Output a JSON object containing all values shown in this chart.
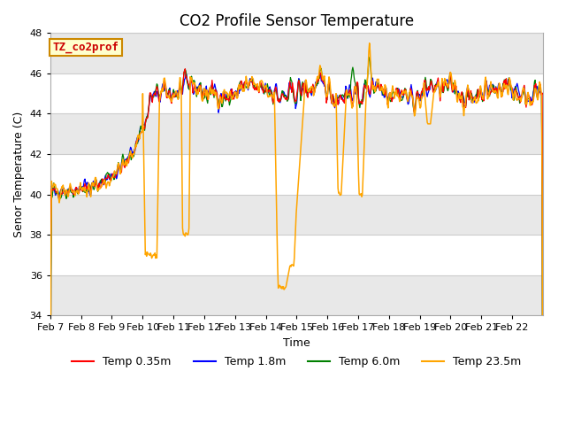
{
  "title": "CO2 Profile Sensor Temperature",
  "xlabel": "Time",
  "ylabel": "Senor Temperature (C)",
  "ylim": [
    34,
    48
  ],
  "yticks": [
    34,
    36,
    38,
    40,
    42,
    44,
    46,
    48
  ],
  "date_labels": [
    "Feb 7",
    "Feb 8",
    "Feb 9",
    "Feb 10",
    "Feb 11",
    "Feb 12",
    "Feb 13",
    "Feb 14",
    "Feb 15",
    "Feb 16",
    "Feb 17",
    "Feb 18",
    "Feb 19",
    "Feb 20",
    "Feb 21",
    "Feb 22"
  ],
  "legend_labels": [
    "Temp 0.35m",
    "Temp 1.8m",
    "Temp 6.0m",
    "Temp 23.5m"
  ],
  "legend_colors": [
    "red",
    "blue",
    "green",
    "orange"
  ],
  "annotation_text": "TZ_co2prof",
  "annotation_color": "#cc0000",
  "annotation_bg": "#ffffcc",
  "annotation_border": "#cc8800",
  "grid_color": "#cccccc",
  "band_color": "#e8e8e8",
  "plot_bg_color": "#ffffff",
  "outer_bg": "#ffffff",
  "title_fontsize": 12,
  "label_fontsize": 9,
  "tick_fontsize": 8
}
